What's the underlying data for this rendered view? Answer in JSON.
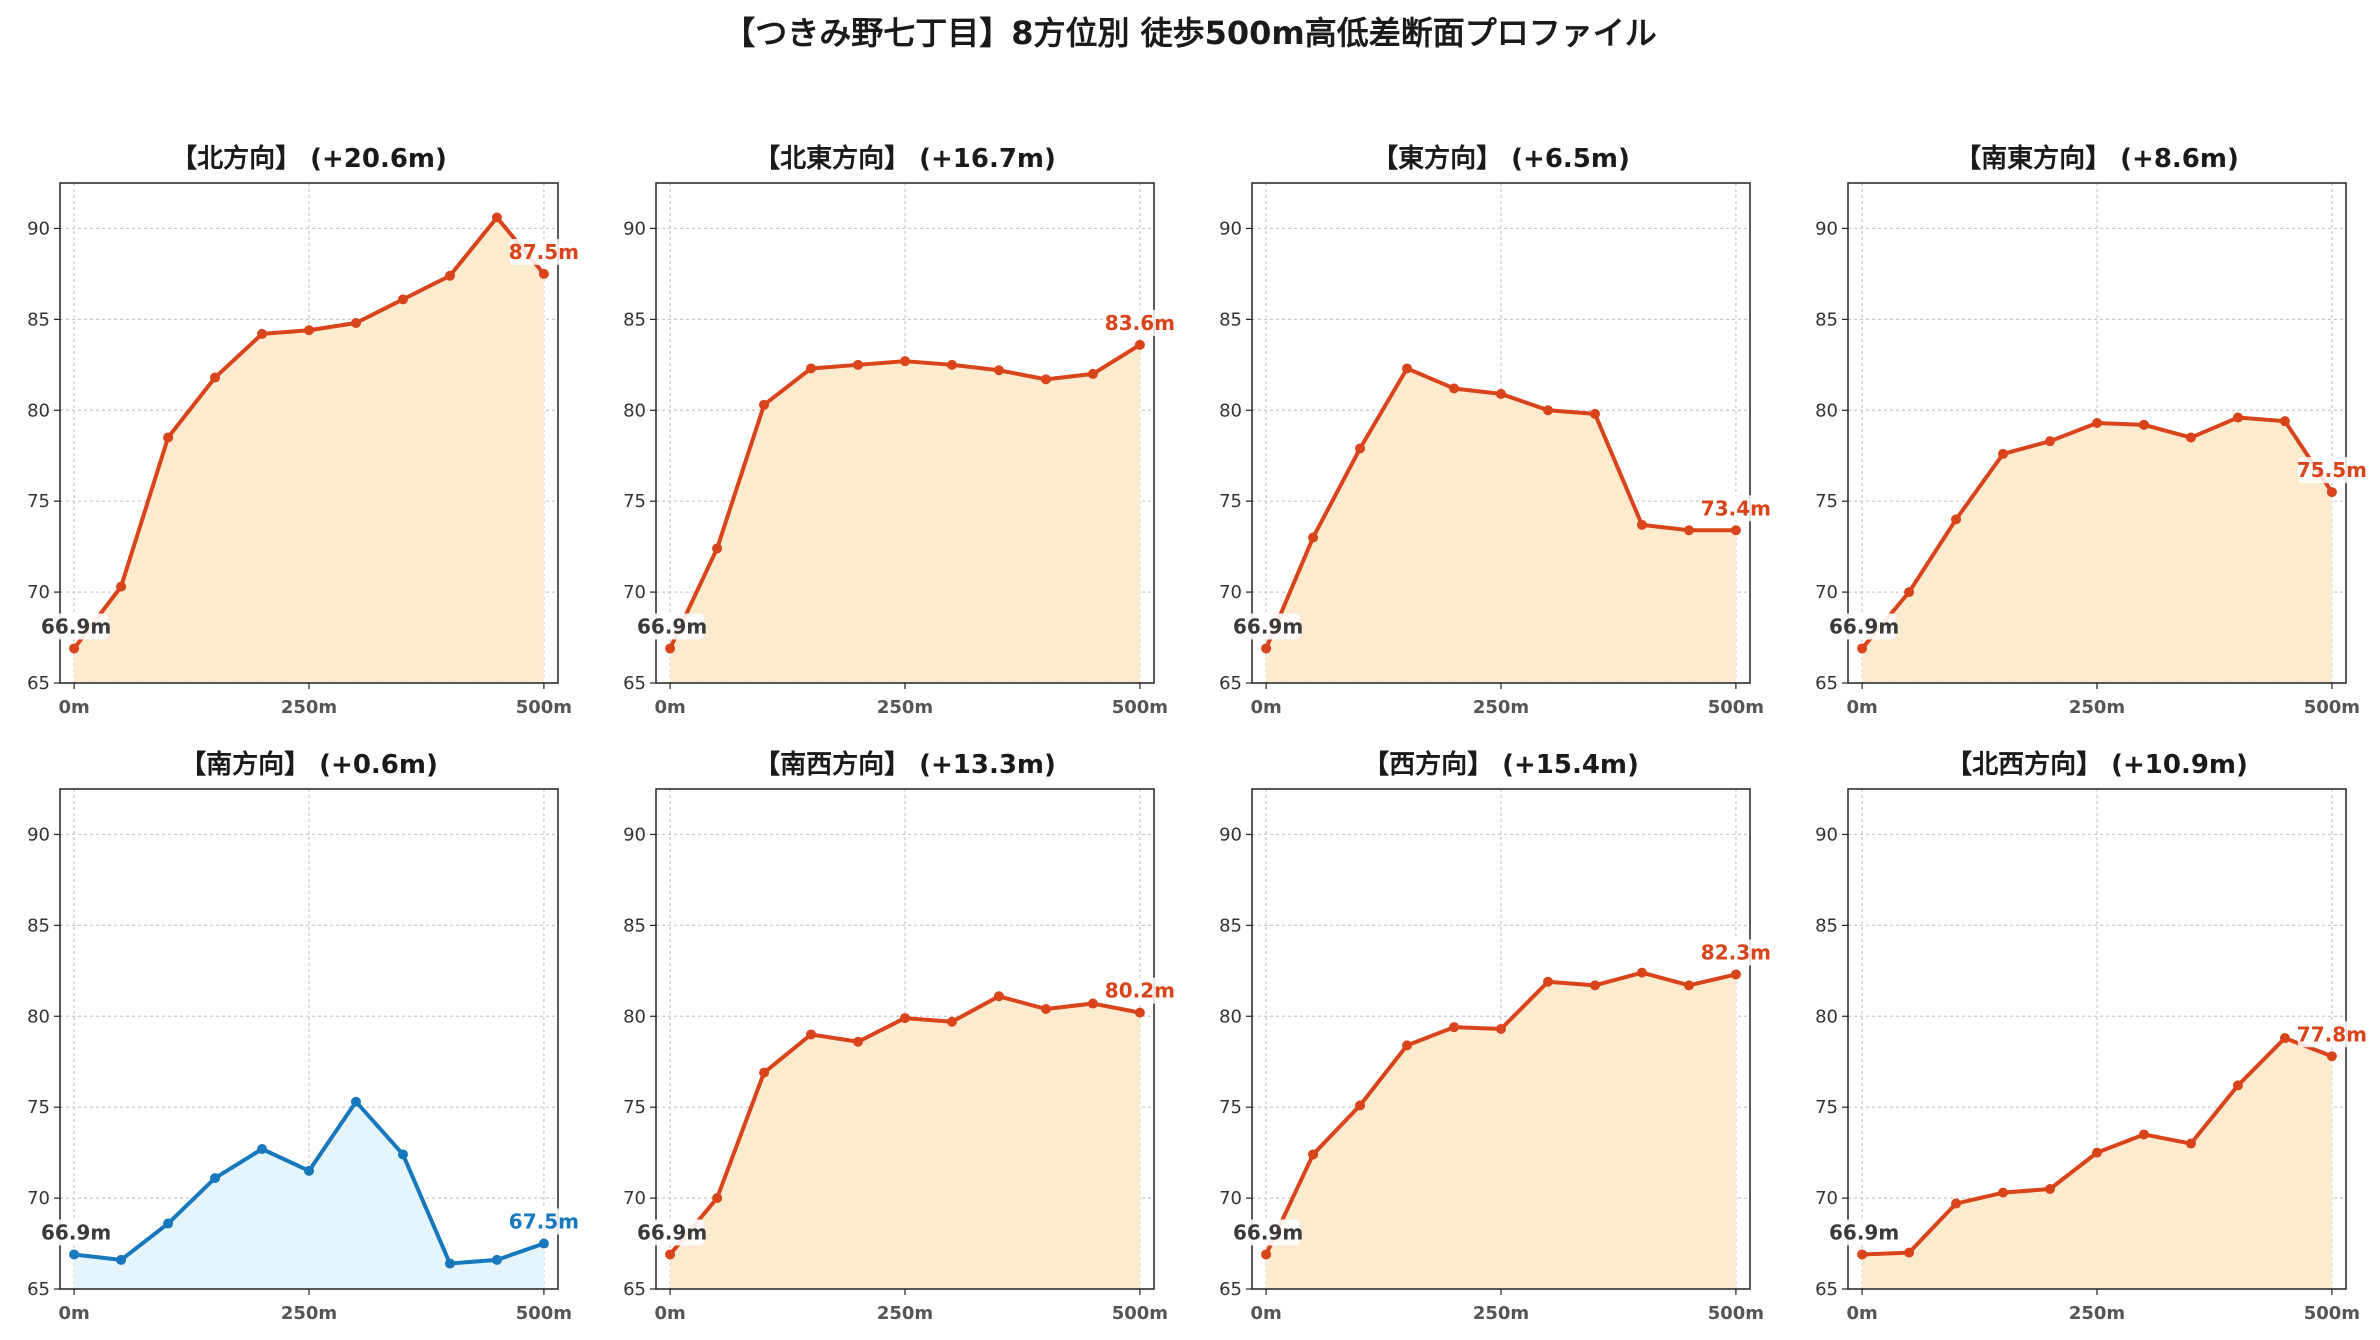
{
  "title": "【つきみ野七丁目】8方位別 徒歩500m高低差断面プロファイル",
  "colors": {
    "up_line": "#d9441a",
    "up_fill": "#fdebd0",
    "down_line": "#1778be",
    "down_fill": "#e6f4fb",
    "grid": "#c8c8c8",
    "start_label": "#3a3a3a"
  },
  "chart_data": [
    {
      "type": "area",
      "title": "【北方向】 (+20.6m)",
      "tone": "up",
      "x": [
        0,
        50,
        100,
        150,
        200,
        250,
        300,
        350,
        400,
        450,
        500
      ],
      "values": [
        66.9,
        70.3,
        78.5,
        81.8,
        84.2,
        84.4,
        84.8,
        86.1,
        87.4,
        90.6,
        87.5
      ],
      "start_label": "66.9m",
      "end_label": "87.5m",
      "xticks": [
        "0m",
        "250m",
        "500m"
      ],
      "yticks": [
        "65",
        "70",
        "75",
        "80",
        "85",
        "90"
      ],
      "xlim": [
        -15,
        515
      ],
      "ylim": [
        65,
        92.5
      ],
      "grid": true
    },
    {
      "type": "area",
      "title": "【北東方向】 (+16.7m)",
      "tone": "up",
      "x": [
        0,
        50,
        100,
        150,
        200,
        250,
        300,
        350,
        400,
        450,
        500
      ],
      "values": [
        66.9,
        72.4,
        80.3,
        82.3,
        82.5,
        82.7,
        82.5,
        82.2,
        81.7,
        82.0,
        83.6
      ],
      "start_label": "66.9m",
      "end_label": "83.6m",
      "xticks": [
        "0m",
        "250m",
        "500m"
      ],
      "yticks": [
        "65",
        "70",
        "75",
        "80",
        "85",
        "90"
      ],
      "xlim": [
        -15,
        515
      ],
      "ylim": [
        65,
        92.5
      ],
      "grid": true
    },
    {
      "type": "area",
      "title": "【東方向】 (+6.5m)",
      "tone": "up",
      "x": [
        0,
        50,
        100,
        150,
        200,
        250,
        300,
        350,
        400,
        450,
        500
      ],
      "values": [
        66.9,
        73.0,
        77.9,
        82.3,
        81.2,
        80.9,
        80.0,
        79.8,
        73.7,
        73.4,
        73.4
      ],
      "start_label": "66.9m",
      "end_label": "73.4m",
      "xticks": [
        "0m",
        "250m",
        "500m"
      ],
      "yticks": [
        "65",
        "70",
        "75",
        "80",
        "85",
        "90"
      ],
      "xlim": [
        -15,
        515
      ],
      "ylim": [
        65,
        92.5
      ],
      "grid": true
    },
    {
      "type": "area",
      "title": "【南東方向】 (+8.6m)",
      "tone": "up",
      "x": [
        0,
        50,
        100,
        150,
        200,
        250,
        300,
        350,
        400,
        450,
        500
      ],
      "values": [
        66.9,
        70.0,
        74.0,
        77.6,
        78.3,
        79.3,
        79.2,
        78.5,
        79.6,
        79.4,
        75.5
      ],
      "start_label": "66.9m",
      "end_label": "75.5m",
      "xticks": [
        "0m",
        "250m",
        "500m"
      ],
      "yticks": [
        "65",
        "70",
        "75",
        "80",
        "85",
        "90"
      ],
      "xlim": [
        -15,
        515
      ],
      "ylim": [
        65,
        92.5
      ],
      "grid": true
    },
    {
      "type": "area",
      "title": "【南方向】 (+0.6m)",
      "tone": "down",
      "x": [
        0,
        50,
        100,
        150,
        200,
        250,
        300,
        350,
        400,
        450,
        500
      ],
      "values": [
        66.9,
        66.6,
        68.6,
        71.1,
        72.7,
        71.5,
        75.3,
        72.4,
        66.4,
        66.6,
        67.5
      ],
      "start_label": "66.9m",
      "end_label": "67.5m",
      "xticks": [
        "0m",
        "250m",
        "500m"
      ],
      "yticks": [
        "65",
        "70",
        "75",
        "80",
        "85",
        "90"
      ],
      "xlim": [
        -15,
        515
      ],
      "ylim": [
        65,
        92.5
      ],
      "grid": true
    },
    {
      "type": "area",
      "title": "【南西方向】 (+13.3m)",
      "tone": "up",
      "x": [
        0,
        50,
        100,
        150,
        200,
        250,
        300,
        350,
        400,
        450,
        500
      ],
      "values": [
        66.9,
        70.0,
        76.9,
        79.0,
        78.6,
        79.9,
        79.7,
        81.1,
        80.4,
        80.7,
        80.2
      ],
      "start_label": "66.9m",
      "end_label": "80.2m",
      "xticks": [
        "0m",
        "250m",
        "500m"
      ],
      "yticks": [
        "65",
        "70",
        "75",
        "80",
        "85",
        "90"
      ],
      "xlim": [
        -15,
        515
      ],
      "ylim": [
        65,
        92.5
      ],
      "grid": true
    },
    {
      "type": "area",
      "title": "【西方向】 (+15.4m)",
      "tone": "up",
      "x": [
        0,
        50,
        100,
        150,
        200,
        250,
        300,
        350,
        400,
        450,
        500
      ],
      "values": [
        66.9,
        72.4,
        75.1,
        78.4,
        79.4,
        79.3,
        81.9,
        81.7,
        82.4,
        81.7,
        82.3
      ],
      "start_label": "66.9m",
      "end_label": "82.3m",
      "xticks": [
        "0m",
        "250m",
        "500m"
      ],
      "yticks": [
        "65",
        "70",
        "75",
        "80",
        "85",
        "90"
      ],
      "xlim": [
        -15,
        515
      ],
      "ylim": [
        65,
        92.5
      ],
      "grid": true
    },
    {
      "type": "area",
      "title": "【北西方向】 (+10.9m)",
      "tone": "up",
      "x": [
        0,
        50,
        100,
        150,
        200,
        250,
        300,
        350,
        400,
        450,
        500
      ],
      "values": [
        66.9,
        67.0,
        69.7,
        70.3,
        70.5,
        72.5,
        73.5,
        73.0,
        76.2,
        78.8,
        77.8
      ],
      "start_label": "66.9m",
      "end_label": "77.8m",
      "xticks": [
        "0m",
        "250m",
        "500m"
      ],
      "yticks": [
        "65",
        "70",
        "75",
        "80",
        "85",
        "90"
      ],
      "xlim": [
        -15,
        515
      ],
      "ylim": [
        65,
        92.5
      ],
      "grid": true
    }
  ]
}
